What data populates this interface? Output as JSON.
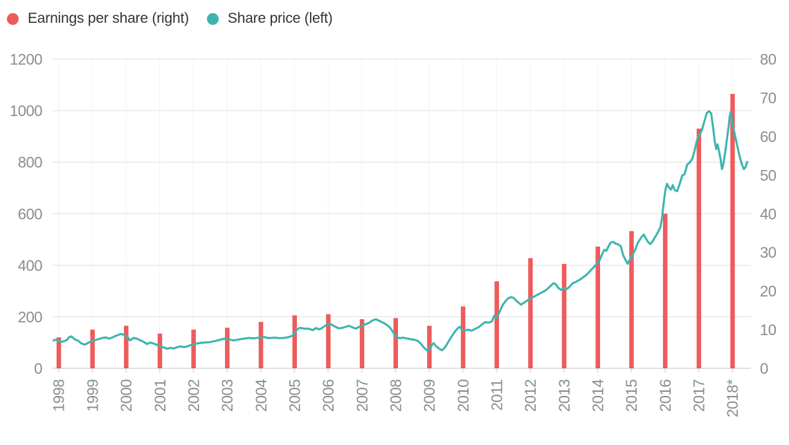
{
  "legend": {
    "items": [
      {
        "label": "Earnings per share (right)",
        "color": "#ee5b5b"
      },
      {
        "label": "Share price (left)",
        "color": "#3cb5ae"
      }
    ]
  },
  "chart_data": {
    "type": "combo",
    "title": "",
    "x_axis": {
      "labels": [
        "1998",
        "1999",
        "2000",
        "2001",
        "2002",
        "2003",
        "2004",
        "2005",
        "2006",
        "2007",
        "2008",
        "2009",
        "2010",
        "2011",
        "2012",
        "2013",
        "2014",
        "2015",
        "2016",
        "2017",
        "2018*"
      ],
      "first_year": 1998
    },
    "left_axis": {
      "name": "Share price",
      "min": 0,
      "max": 1200,
      "ticks": [
        0,
        200,
        400,
        600,
        800,
        1000,
        1200
      ]
    },
    "right_axis": {
      "name": "Earnings per share",
      "min": 0,
      "max": 80,
      "ticks": [
        0,
        10,
        20,
        30,
        40,
        50,
        60,
        70,
        80
      ]
    },
    "series": [
      {
        "name": "Earnings per share (right)",
        "type": "bar",
        "axis": "right",
        "color": "#ee5b5b",
        "values": [
          8,
          10,
          11,
          9,
          10,
          10.5,
          12,
          13.7,
          14,
          12.7,
          13,
          11,
          16,
          22.5,
          28.5,
          27,
          31.5,
          35.5,
          40,
          62,
          71
        ]
      },
      {
        "name": "Share price (left)",
        "type": "line",
        "axis": "left",
        "color": "#3cb5ae",
        "points": [
          [
            1997.85,
            108
          ],
          [
            1997.95,
            112
          ],
          [
            1998.05,
            101
          ],
          [
            1998.15,
            105
          ],
          [
            1998.25,
            110
          ],
          [
            1998.3,
            120
          ],
          [
            1998.38,
            124
          ],
          [
            1998.48,
            112
          ],
          [
            1998.58,
            107
          ],
          [
            1998.68,
            96
          ],
          [
            1998.78,
            92
          ],
          [
            1998.88,
            99
          ],
          [
            1998.98,
            106
          ],
          [
            1999.1,
            110
          ],
          [
            1999.2,
            114
          ],
          [
            1999.3,
            118
          ],
          [
            1999.4,
            120
          ],
          [
            1999.5,
            115
          ],
          [
            1999.6,
            120
          ],
          [
            1999.7,
            126
          ],
          [
            1999.8,
            131
          ],
          [
            1999.88,
            133
          ],
          [
            1999.96,
            128
          ],
          [
            2000.05,
            121
          ],
          [
            2000.12,
            108
          ],
          [
            2000.22,
            118
          ],
          [
            2000.32,
            115
          ],
          [
            2000.42,
            109
          ],
          [
            2000.52,
            103
          ],
          [
            2000.62,
            94
          ],
          [
            2000.72,
            100
          ],
          [
            2000.82,
            96
          ],
          [
            2000.92,
            91
          ],
          [
            2001.02,
            85
          ],
          [
            2001.12,
            81
          ],
          [
            2001.22,
            76
          ],
          [
            2001.32,
            79
          ],
          [
            2001.42,
            77
          ],
          [
            2001.52,
            82
          ],
          [
            2001.62,
            85
          ],
          [
            2001.72,
            82
          ],
          [
            2001.82,
            85
          ],
          [
            2001.92,
            90
          ],
          [
            2002.02,
            94
          ],
          [
            2002.17,
            98
          ],
          [
            2002.32,
            100
          ],
          [
            2002.47,
            101
          ],
          [
            2002.62,
            105
          ],
          [
            2002.77,
            110
          ],
          [
            2002.92,
            115
          ],
          [
            2003.05,
            112
          ],
          [
            2003.2,
            108
          ],
          [
            2003.35,
            112
          ],
          [
            2003.5,
            115
          ],
          [
            2003.65,
            118
          ],
          [
            2003.8,
            116
          ],
          [
            2003.95,
            119
          ],
          [
            2004.1,
            121
          ],
          [
            2004.25,
            117
          ],
          [
            2004.4,
            119
          ],
          [
            2004.55,
            117
          ],
          [
            2004.7,
            118
          ],
          [
            2004.85,
            122
          ],
          [
            2004.95,
            127
          ],
          [
            2005.02,
            140
          ],
          [
            2005.08,
            151
          ],
          [
            2005.16,
            157
          ],
          [
            2005.3,
            154
          ],
          [
            2005.44,
            153
          ],
          [
            2005.54,
            148
          ],
          [
            2005.64,
            156
          ],
          [
            2005.74,
            151
          ],
          [
            2005.84,
            158
          ],
          [
            2005.94,
            168
          ],
          [
            2006.02,
            174
          ],
          [
            2006.12,
            168
          ],
          [
            2006.22,
            161
          ],
          [
            2006.32,
            155
          ],
          [
            2006.42,
            157
          ],
          [
            2006.52,
            161
          ],
          [
            2006.62,
            165
          ],
          [
            2006.72,
            159
          ],
          [
            2006.82,
            154
          ],
          [
            2006.92,
            161
          ],
          [
            2007.02,
            166
          ],
          [
            2007.12,
            171
          ],
          [
            2007.22,
            177
          ],
          [
            2007.32,
            186
          ],
          [
            2007.42,
            190
          ],
          [
            2007.52,
            184
          ],
          [
            2007.62,
            178
          ],
          [
            2007.72,
            170
          ],
          [
            2007.82,
            160
          ],
          [
            2007.92,
            142
          ],
          [
            2008.02,
            122
          ],
          [
            2008.12,
            117
          ],
          [
            2008.22,
            119
          ],
          [
            2008.32,
            116
          ],
          [
            2008.45,
            113
          ],
          [
            2008.55,
            111
          ],
          [
            2008.65,
            107
          ],
          [
            2008.75,
            96
          ],
          [
            2008.85,
            79
          ],
          [
            2008.95,
            68
          ],
          [
            2009.02,
            75
          ],
          [
            2009.08,
            91
          ],
          [
            2009.13,
            98
          ],
          [
            2009.2,
            86
          ],
          [
            2009.3,
            76
          ],
          [
            2009.38,
            70
          ],
          [
            2009.46,
            80
          ],
          [
            2009.52,
            92
          ],
          [
            2009.58,
            106
          ],
          [
            2009.65,
            120
          ],
          [
            2009.72,
            134
          ],
          [
            2009.79,
            147
          ],
          [
            2009.86,
            157
          ],
          [
            2009.91,
            161
          ],
          [
            2009.97,
            150
          ],
          [
            2010.06,
            147
          ],
          [
            2010.16,
            150
          ],
          [
            2010.26,
            146
          ],
          [
            2010.36,
            153
          ],
          [
            2010.46,
            159
          ],
          [
            2010.56,
            170
          ],
          [
            2010.66,
            179
          ],
          [
            2010.76,
            177
          ],
          [
            2010.86,
            182
          ],
          [
            2010.93,
            204
          ],
          [
            2010.98,
            195
          ],
          [
            2011.06,
            210
          ],
          [
            2011.13,
            231
          ],
          [
            2011.2,
            249
          ],
          [
            2011.28,
            263
          ],
          [
            2011.35,
            272
          ],
          [
            2011.42,
            276
          ],
          [
            2011.5,
            274
          ],
          [
            2011.58,
            263
          ],
          [
            2011.66,
            254
          ],
          [
            2011.73,
            247
          ],
          [
            2011.81,
            254
          ],
          [
            2011.91,
            263
          ],
          [
            2012.01,
            272
          ],
          [
            2012.11,
            278
          ],
          [
            2012.21,
            285
          ],
          [
            2012.31,
            292
          ],
          [
            2012.41,
            299
          ],
          [
            2012.51,
            308
          ],
          [
            2012.61,
            321
          ],
          [
            2012.69,
            330
          ],
          [
            2012.76,
            326
          ],
          [
            2012.83,
            312
          ],
          [
            2012.91,
            304
          ],
          [
            2013.01,
            312
          ],
          [
            2013.09,
            308
          ],
          [
            2013.17,
            317
          ],
          [
            2013.26,
            330
          ],
          [
            2013.36,
            336
          ],
          [
            2013.46,
            343
          ],
          [
            2013.56,
            352
          ],
          [
            2013.66,
            362
          ],
          [
            2013.76,
            375
          ],
          [
            2013.86,
            389
          ],
          [
            2013.96,
            403
          ],
          [
            2014.06,
            420
          ],
          [
            2014.13,
            442
          ],
          [
            2014.2,
            460
          ],
          [
            2014.26,
            456
          ],
          [
            2014.32,
            473
          ],
          [
            2014.38,
            487
          ],
          [
            2014.46,
            491
          ],
          [
            2014.53,
            484
          ],
          [
            2014.61,
            481
          ],
          [
            2014.69,
            473
          ],
          [
            2014.76,
            438
          ],
          [
            2014.83,
            420
          ],
          [
            2014.89,
            406
          ],
          [
            2014.95,
            420
          ],
          [
            2015.01,
            433
          ],
          [
            2015.06,
            447
          ],
          [
            2015.12,
            461
          ],
          [
            2015.19,
            487
          ],
          [
            2015.26,
            501
          ],
          [
            2015.31,
            511
          ],
          [
            2015.37,
            519
          ],
          [
            2015.43,
            505
          ],
          [
            2015.49,
            491
          ],
          [
            2015.56,
            482
          ],
          [
            2015.63,
            492
          ],
          [
            2015.69,
            506
          ],
          [
            2015.75,
            519
          ],
          [
            2015.81,
            533
          ],
          [
            2015.86,
            547
          ],
          [
            2015.91,
            582
          ],
          [
            2015.96,
            642
          ],
          [
            2016.01,
            692
          ],
          [
            2016.06,
            716
          ],
          [
            2016.12,
            701
          ],
          [
            2016.18,
            694
          ],
          [
            2016.23,
            711
          ],
          [
            2016.29,
            691
          ],
          [
            2016.36,
            687
          ],
          [
            2016.43,
            713
          ],
          [
            2016.51,
            748
          ],
          [
            2016.58,
            753
          ],
          [
            2016.66,
            791
          ],
          [
            2016.73,
            798
          ],
          [
            2016.81,
            813
          ],
          [
            2016.89,
            851
          ],
          [
            2016.94,
            881
          ],
          [
            2016.99,
            901
          ],
          [
            2017.04,
            909
          ],
          [
            2017.09,
            923
          ],
          [
            2017.14,
            946
          ],
          [
            2017.19,
            968
          ],
          [
            2017.24,
            991
          ],
          [
            2017.31,
            998
          ],
          [
            2017.37,
            989
          ],
          [
            2017.43,
            931
          ],
          [
            2017.48,
            877
          ],
          [
            2017.52,
            851
          ],
          [
            2017.56,
            869
          ],
          [
            2017.61,
            838
          ],
          [
            2017.65,
            811
          ],
          [
            2017.69,
            773
          ],
          [
            2017.73,
            791
          ],
          [
            2017.77,
            824
          ],
          [
            2017.81,
            861
          ],
          [
            2017.85,
            901
          ],
          [
            2017.89,
            941
          ],
          [
            2017.92,
            977
          ],
          [
            2017.95,
            995
          ],
          [
            2017.98,
            966
          ],
          [
            2018.03,
            931
          ],
          [
            2018.09,
            896
          ],
          [
            2018.15,
            861
          ],
          [
            2018.21,
            824
          ],
          [
            2018.28,
            791
          ],
          [
            2018.34,
            773
          ],
          [
            2018.39,
            781
          ],
          [
            2018.44,
            801
          ]
        ]
      }
    ],
    "layout_hints": {
      "grid": "horizontal",
      "legend_position": "top-left",
      "x_labels_rotated": true
    },
    "style": {
      "grid_color": "#e9e9e9",
      "axis_line_color": "#d9d9d9",
      "vgrid_color": "#f3f3f3",
      "tick_text_color": "#8c8c8c",
      "legend_text_color": "#333333",
      "background": "#ffffff"
    }
  }
}
